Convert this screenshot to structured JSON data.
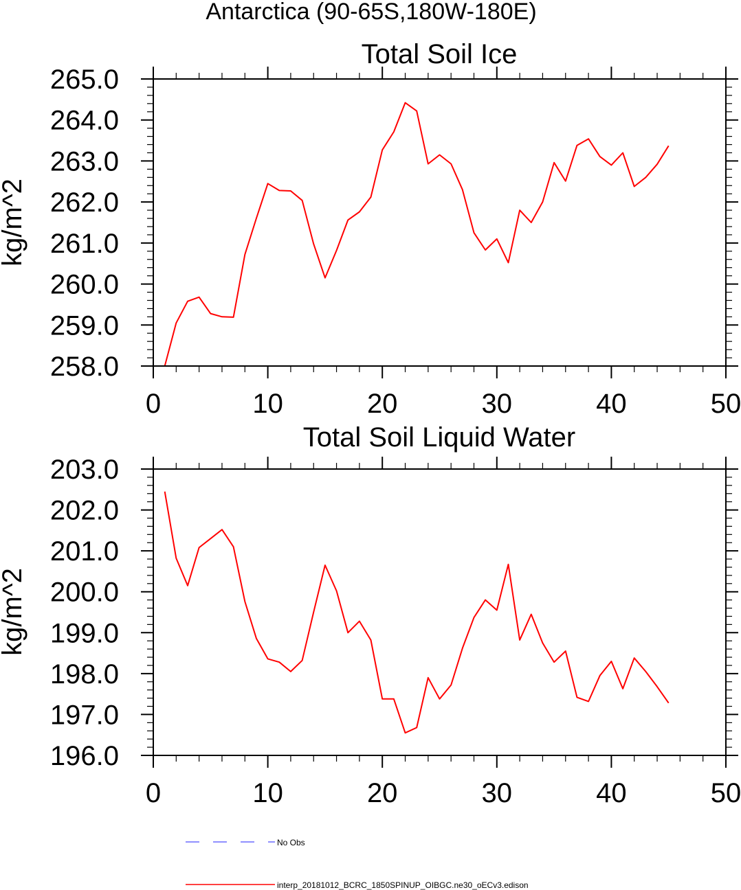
{
  "figure": {
    "title": "Antarctica (90-65S,180W-180E)"
  },
  "chart_data": [
    {
      "type": "line",
      "title": "Total Soil Ice",
      "ylabel": "kg/m^2",
      "xlabel": "",
      "xlim": [
        0,
        50
      ],
      "ylim": [
        258.0,
        265.0
      ],
      "xticks": [
        "0",
        "10",
        "20",
        "30",
        "40",
        "50"
      ],
      "yticks": [
        "258.0",
        "259.0",
        "260.0",
        "261.0",
        "262.0",
        "263.0",
        "264.0",
        "265.0"
      ],
      "grid": false,
      "series": [
        {
          "name": "interp_20181012_BCRC_1850SPINUP_OIBGC.ne30_oECv3.edison",
          "color": "#ff0000",
          "x": [
            1,
            2,
            3,
            4,
            5,
            6,
            7,
            8,
            9,
            10,
            11,
            12,
            13,
            14,
            15,
            16,
            17,
            18,
            19,
            20,
            21,
            22,
            23,
            24,
            25,
            26,
            27,
            28,
            29,
            30,
            31,
            32,
            33,
            34,
            35,
            36,
            37,
            38,
            39,
            40,
            41,
            42,
            43,
            44,
            45
          ],
          "y": [
            258.0,
            259.05,
            259.58,
            259.68,
            259.28,
            259.2,
            259.19,
            260.72,
            261.6,
            262.45,
            262.28,
            262.27,
            262.04,
            260.98,
            260.15,
            260.82,
            261.56,
            261.76,
            262.12,
            263.27,
            263.71,
            264.42,
            264.22,
            262.93,
            263.15,
            262.93,
            262.3,
            261.25,
            260.83,
            261.1,
            260.52,
            261.8,
            261.5,
            262.0,
            262.96,
            262.51,
            263.38,
            263.54,
            263.11,
            262.9,
            263.2,
            262.38,
            262.6,
            262.92,
            263.37
          ]
        }
      ]
    },
    {
      "type": "line",
      "title": "Total Soil Liquid Water",
      "ylabel": "kg/m^2",
      "xlabel": "",
      "xlim": [
        0,
        50
      ],
      "ylim": [
        196.0,
        203.0
      ],
      "xticks": [
        "0",
        "10",
        "20",
        "30",
        "40",
        "50"
      ],
      "yticks": [
        "196.0",
        "197.0",
        "198.0",
        "199.0",
        "200.0",
        "201.0",
        "202.0",
        "203.0"
      ],
      "grid": false,
      "series": [
        {
          "name": "interp_20181012_BCRC_1850SPINUP_OIBGC.ne30_oECv3.edison",
          "color": "#ff0000",
          "x": [
            1,
            2,
            3,
            4,
            5,
            6,
            7,
            8,
            9,
            10,
            11,
            12,
            13,
            14,
            15,
            16,
            17,
            18,
            19,
            20,
            21,
            22,
            23,
            24,
            25,
            26,
            27,
            28,
            29,
            30,
            31,
            32,
            33,
            34,
            35,
            36,
            37,
            38,
            39,
            40,
            41,
            42,
            43,
            44,
            45
          ],
          "y": [
            202.45,
            200.82,
            200.15,
            201.08,
            201.3,
            201.52,
            201.1,
            199.76,
            198.86,
            198.36,
            198.28,
            198.05,
            198.32,
            199.5,
            200.65,
            200.02,
            199.0,
            199.28,
            198.82,
            197.38,
            197.38,
            196.55,
            196.68,
            197.9,
            197.38,
            197.72,
            198.62,
            199.37,
            199.8,
            199.55,
            200.67,
            198.82,
            199.45,
            198.75,
            198.28,
            198.55,
            197.42,
            197.32,
            197.95,
            198.3,
            197.63,
            198.38,
            198.05,
            197.68,
            197.28
          ]
        }
      ]
    }
  ],
  "legend": [
    {
      "label": "No Obs",
      "color": "#6a6aff",
      "style": "dashed"
    },
    {
      "label": "interp_20181012_BCRC_1850SPINUP_OIBGC.ne30_oECv3.edison",
      "color": "#ff0000",
      "style": "solid"
    }
  ]
}
